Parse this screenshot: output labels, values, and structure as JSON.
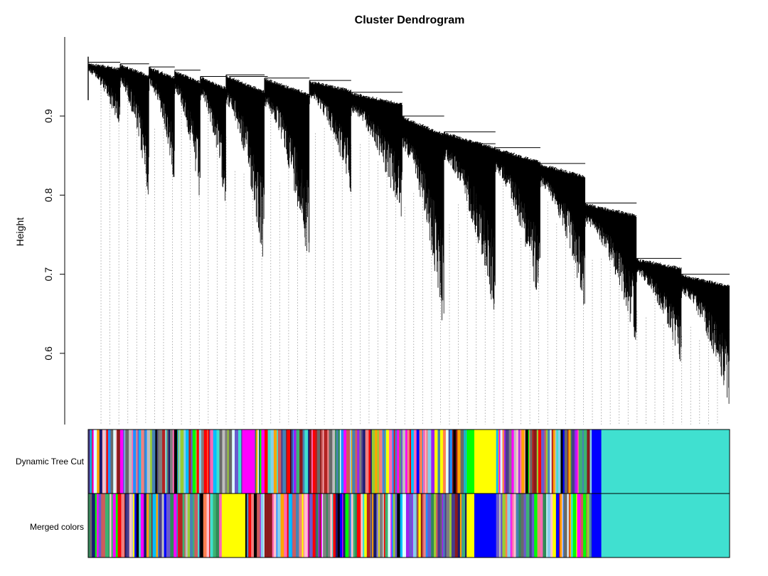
{
  "chart_data": {
    "type": "dendrogram",
    "title": "Cluster Dendrogram",
    "xlabel": "",
    "ylabel": "Height",
    "ylim": [
      0.51,
      0.99
    ],
    "yticks": [
      0.6,
      0.7,
      0.8,
      0.9
    ],
    "color_rows": [
      "Dynamic Tree Cut",
      "Merged colors"
    ],
    "branches": [
      {
        "from": 0.0,
        "to": 0.05,
        "merge": 0.968,
        "min": 0.88
      },
      {
        "from": 0.05,
        "to": 0.095,
        "merge": 0.966,
        "min": 0.79
      },
      {
        "from": 0.095,
        "to": 0.135,
        "merge": 0.962,
        "min": 0.81
      },
      {
        "from": 0.135,
        "to": 0.175,
        "merge": 0.958,
        "min": 0.78
      },
      {
        "from": 0.175,
        "to": 0.215,
        "merge": 0.95,
        "min": 0.78
      },
      {
        "from": 0.215,
        "to": 0.275,
        "merge": 0.952,
        "min": 0.7
      },
      {
        "from": 0.275,
        "to": 0.345,
        "merge": 0.948,
        "min": 0.705
      },
      {
        "from": 0.345,
        "to": 0.41,
        "merge": 0.945,
        "min": 0.8
      },
      {
        "from": 0.41,
        "to": 0.49,
        "merge": 0.93,
        "min": 0.76
      },
      {
        "from": 0.49,
        "to": 0.555,
        "merge": 0.9,
        "min": 0.62
      },
      {
        "from": 0.555,
        "to": 0.635,
        "merge": 0.88,
        "min": 0.64
      },
      {
        "from": 0.635,
        "to": 0.705,
        "merge": 0.86,
        "min": 0.65
      },
      {
        "from": 0.705,
        "to": 0.775,
        "merge": 0.84,
        "min": 0.65
      },
      {
        "from": 0.775,
        "to": 0.855,
        "merge": 0.79,
        "min": 0.61
      },
      {
        "from": 0.855,
        "to": 0.925,
        "merge": 0.72,
        "min": 0.58
      },
      {
        "from": 0.925,
        "to": 1.0,
        "merge": 0.7,
        "min": 0.53
      }
    ],
    "dynamic_tree_cut_segments": [
      {
        "start": 0.0,
        "end": 0.07,
        "color": "mixed"
      },
      {
        "start": 0.07,
        "end": 0.11,
        "color": "mixed"
      },
      {
        "start": 0.11,
        "end": 0.14,
        "color": "mixed"
      },
      {
        "start": 0.14,
        "end": 0.19,
        "color": "mixed"
      },
      {
        "start": 0.19,
        "end": 0.24,
        "color": "mixed"
      },
      {
        "start": 0.24,
        "end": 0.26,
        "color": "#ff00ff"
      },
      {
        "start": 0.26,
        "end": 0.31,
        "color": "mixed"
      },
      {
        "start": 0.31,
        "end": 0.345,
        "color": "mixed"
      },
      {
        "start": 0.345,
        "end": 0.41,
        "color": "mixed"
      },
      {
        "start": 0.41,
        "end": 0.49,
        "color": "mixed"
      },
      {
        "start": 0.49,
        "end": 0.59,
        "color": "mixed"
      },
      {
        "start": 0.59,
        "end": 0.602,
        "color": "#00ff00"
      },
      {
        "start": 0.602,
        "end": 0.636,
        "color": "#ffff00"
      },
      {
        "start": 0.636,
        "end": 0.74,
        "color": "mixed"
      },
      {
        "start": 0.74,
        "end": 0.785,
        "color": "mixed"
      },
      {
        "start": 0.785,
        "end": 0.8,
        "color": "#0000ff"
      },
      {
        "start": 0.8,
        "end": 1.0,
        "color": "#40e0d0"
      }
    ],
    "merged_colors_segments": [
      {
        "start": 0.0,
        "end": 0.07,
        "color": "mixed"
      },
      {
        "start": 0.07,
        "end": 0.11,
        "color": "mixed"
      },
      {
        "start": 0.11,
        "end": 0.14,
        "color": "mixed"
      },
      {
        "start": 0.14,
        "end": 0.19,
        "color": "mixed"
      },
      {
        "start": 0.19,
        "end": 0.21,
        "color": "mixed"
      },
      {
        "start": 0.21,
        "end": 0.245,
        "color": "#ffff00"
      },
      {
        "start": 0.245,
        "end": 0.345,
        "color": "mixed"
      },
      {
        "start": 0.345,
        "end": 0.41,
        "color": "mixed"
      },
      {
        "start": 0.41,
        "end": 0.49,
        "color": "mixed"
      },
      {
        "start": 0.49,
        "end": 0.59,
        "color": "mixed"
      },
      {
        "start": 0.59,
        "end": 0.602,
        "color": "#ffff00"
      },
      {
        "start": 0.602,
        "end": 0.636,
        "color": "#0000ff"
      },
      {
        "start": 0.636,
        "end": 0.74,
        "color": "mixed"
      },
      {
        "start": 0.74,
        "end": 0.785,
        "color": "mixed"
      },
      {
        "start": 0.785,
        "end": 0.8,
        "color": "#0000ff"
      },
      {
        "start": 0.8,
        "end": 1.0,
        "color": "#40e0d0"
      }
    ],
    "palette": [
      "#1e90ff",
      "#4682b4",
      "#8b1a1a",
      "#9acd32",
      "#40e0d0",
      "#87ceeb",
      "#ff7f50",
      "#bebebe",
      "#a020f0",
      "#f08080",
      "#7f7f7f",
      "#2e8b57",
      "#ff69b4",
      "#483d8b",
      "#00bfff",
      "#cd5c5c",
      "#696969",
      "#3cb371",
      "#ffa500",
      "#191970",
      "#000000",
      "#ff0000",
      "#00ff00",
      "#ffff00",
      "#ff00ff",
      "#0000ff",
      "#e0ffff",
      "#ffc0cb",
      "#6a5acd",
      "#b22222"
    ]
  }
}
